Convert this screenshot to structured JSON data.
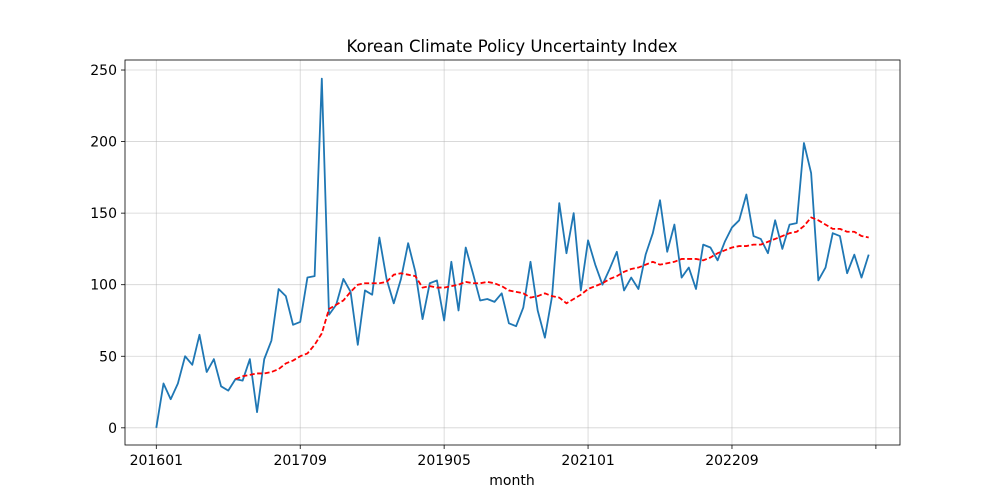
{
  "chart_data": {
    "type": "line",
    "title": "Korean Climate Policy Uncertainty Index",
    "xlabel": "month",
    "ylabel": "",
    "x_tick_labels": [
      "201601",
      "201709",
      "201905",
      "202101",
      "202209",
      ""
    ],
    "y_ticks": [
      0,
      50,
      100,
      150,
      200,
      250
    ],
    "ylim": [
      -12,
      257
    ],
    "grid": true,
    "colors": {
      "index": "#1f77b4",
      "trend": "#ff0000"
    },
    "series": [
      {
        "style": "solid",
        "values": [
          0,
          31,
          20,
          31,
          50,
          44,
          65,
          39,
          48,
          29,
          26,
          34,
          33,
          48,
          11,
          48,
          61,
          97,
          92,
          72,
          74,
          105,
          106,
          244,
          79,
          86,
          104,
          95,
          58,
          96,
          93,
          133,
          104,
          87,
          104,
          129,
          109,
          76,
          101,
          103,
          75,
          116,
          82,
          126,
          108,
          89,
          90,
          88,
          94,
          73,
          71,
          84,
          116,
          82,
          63,
          92,
          157,
          122,
          150,
          96,
          131,
          114,
          100,
          111,
          123,
          96,
          105,
          97,
          121,
          136,
          159,
          123,
          142,
          105,
          112,
          97,
          128,
          126,
          117,
          130,
          140,
          145,
          163,
          134,
          132,
          122,
          145,
          125,
          142,
          143,
          199,
          178,
          103,
          112,
          136,
          134,
          108,
          121,
          105,
          121
        ]
      },
      {
        "style": "dashed",
        "start_index": 11,
        "values": [
          34,
          36,
          37,
          38,
          38,
          39,
          41,
          45,
          47,
          50,
          52,
          58,
          66,
          83,
          86,
          89,
          95,
          100,
          101,
          101,
          101,
          102,
          107,
          108,
          107,
          106,
          98,
          99,
          98,
          98,
          99,
          100,
          102,
          101,
          101,
          102,
          101,
          99,
          96,
          95,
          94,
          91,
          92,
          94,
          92,
          91,
          87,
          90,
          93,
          97,
          99,
          101,
          104,
          106,
          109,
          111,
          112,
          114,
          116,
          114,
          115,
          116,
          118,
          118,
          118,
          117,
          119,
          122,
          124,
          126,
          127,
          127,
          128,
          128,
          130,
          132,
          134,
          136,
          137,
          141,
          147,
          145,
          142,
          139,
          139,
          137,
          137,
          134,
          133
        ]
      }
    ]
  }
}
